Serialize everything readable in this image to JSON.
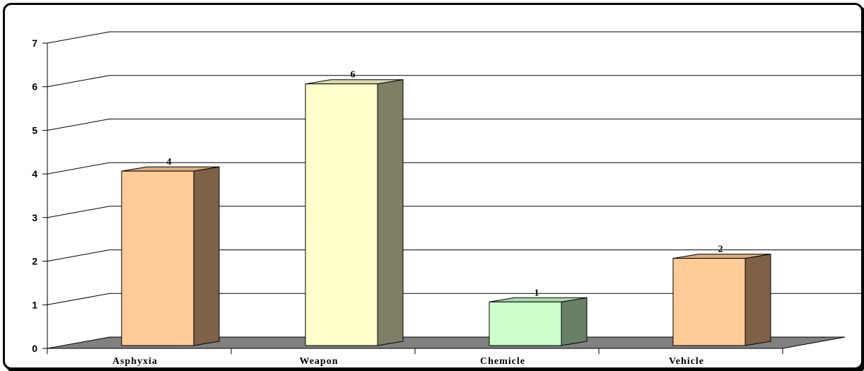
{
  "chart_data": {
    "type": "bar",
    "title": "",
    "xlabel": "",
    "ylabel": "",
    "categories": [
      "Asphyxia",
      "Weapon",
      "Chemicle",
      "Vehicle"
    ],
    "values": [
      4,
      6,
      1,
      2
    ],
    "ylim": [
      0,
      7
    ],
    "yticks": [
      "0",
      "1",
      "2",
      "3",
      "4",
      "5",
      "6",
      "7"
    ],
    "grid": true,
    "legend": "none",
    "style": "3d-column",
    "colors": {
      "Asphyxia": {
        "front": "#ffcc99",
        "side": "#7f6147",
        "top": "#d9ad80"
      },
      "Weapon": {
        "front": "#ffffcc",
        "side": "#7f7f66",
        "top": "#d9d9ad"
      },
      "Chemicle": {
        "front": "#ccffcc",
        "side": "#667f66",
        "top": "#addaad"
      },
      "Vehicle": {
        "front": "#ffcc99",
        "side": "#7f6147",
        "top": "#d9ad80"
      }
    },
    "floor_color": "#808080",
    "gridline_color": "#000000"
  }
}
